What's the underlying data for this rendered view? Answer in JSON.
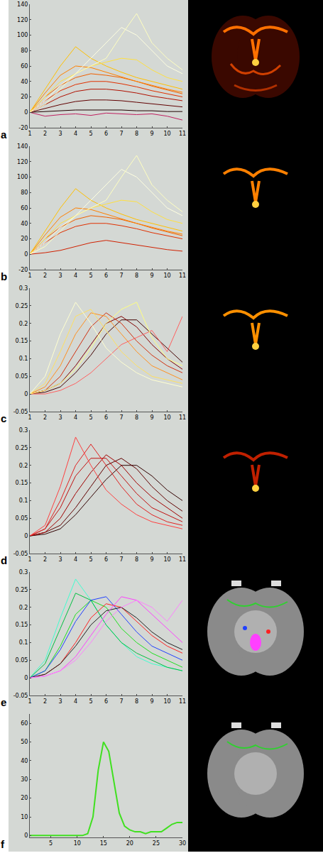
{
  "chart_data": [
    {
      "type": "line",
      "panel": "a",
      "x": [
        1,
        2,
        3,
        4,
        5,
        6,
        7,
        8,
        9,
        10,
        11
      ],
      "xlim": [
        1,
        11
      ],
      "xticks": [
        1,
        2,
        3,
        4,
        5,
        6,
        7,
        8,
        9,
        10,
        11
      ],
      "ylim": [
        -20,
        140
      ],
      "yticks": [
        -20,
        0,
        20,
        40,
        60,
        80,
        100,
        120,
        140
      ],
      "series": [
        {
          "color": "#c02060",
          "values": [
            0,
            -5,
            -3,
            -2,
            -4,
            -1,
            -2,
            -3,
            -2,
            -5,
            -10
          ]
        },
        {
          "color": "#200000",
          "values": [
            0,
            1,
            2,
            3,
            3,
            3,
            3,
            2,
            2,
            1,
            1
          ]
        },
        {
          "color": "#600000",
          "values": [
            0,
            5,
            10,
            14,
            16,
            16,
            15,
            13,
            11,
            9,
            7
          ]
        },
        {
          "color": "#b01000",
          "values": [
            0,
            10,
            20,
            27,
            30,
            30,
            28,
            25,
            21,
            18,
            15
          ]
        },
        {
          "color": "#e03000",
          "values": [
            0,
            15,
            28,
            36,
            40,
            40,
            37,
            33,
            28,
            24,
            20
          ]
        },
        {
          "color": "#f06000",
          "values": [
            0,
            20,
            35,
            45,
            50,
            48,
            45,
            40,
            34,
            29,
            24
          ]
        },
        {
          "color": "#ff8000",
          "values": [
            0,
            25,
            48,
            60,
            58,
            52,
            46,
            40,
            35,
            30,
            26
          ]
        },
        {
          "color": "#ffc000",
          "values": [
            0,
            30,
            60,
            85,
            70,
            60,
            52,
            45,
            40,
            35,
            30
          ]
        },
        {
          "color": "#ffe040",
          "values": [
            0,
            20,
            40,
            50,
            60,
            65,
            70,
            68,
            55,
            45,
            40
          ]
        },
        {
          "color": "#ffffe0",
          "values": [
            0,
            15,
            35,
            50,
            70,
            90,
            110,
            100,
            80,
            60,
            50
          ]
        },
        {
          "color": "#ffffc0",
          "values": [
            0,
            10,
            30,
            50,
            60,
            70,
            100,
            128,
            90,
            70,
            55
          ]
        }
      ]
    },
    {
      "type": "line",
      "panel": "b",
      "x": [
        1,
        2,
        3,
        4,
        5,
        6,
        7,
        8,
        9,
        10,
        11
      ],
      "xlim": [
        1,
        11
      ],
      "xticks": [
        1,
        2,
        3,
        4,
        5,
        6,
        7,
        8,
        9,
        10,
        11
      ],
      "ylim": [
        -20,
        140
      ],
      "yticks": [
        -20,
        0,
        20,
        40,
        60,
        80,
        100,
        120,
        140
      ],
      "series": [
        {
          "color": "#d02000",
          "values": [
            0,
            2,
            5,
            10,
            15,
            18,
            15,
            12,
            9,
            6,
            4
          ]
        },
        {
          "color": "#e03000",
          "values": [
            0,
            15,
            28,
            36,
            40,
            40,
            37,
            33,
            28,
            24,
            20
          ]
        },
        {
          "color": "#f06000",
          "values": [
            0,
            20,
            35,
            45,
            50,
            48,
            45,
            40,
            34,
            29,
            24
          ]
        },
        {
          "color": "#ff8000",
          "values": [
            0,
            25,
            48,
            60,
            58,
            52,
            46,
            40,
            35,
            30,
            26
          ]
        },
        {
          "color": "#ffc000",
          "values": [
            0,
            30,
            60,
            85,
            70,
            60,
            52,
            45,
            40,
            35,
            30
          ]
        },
        {
          "color": "#ffe040",
          "values": [
            0,
            20,
            40,
            50,
            60,
            65,
            70,
            68,
            55,
            45,
            40
          ]
        },
        {
          "color": "#ffffe0",
          "values": [
            0,
            15,
            35,
            50,
            70,
            90,
            110,
            100,
            80,
            60,
            50
          ]
        },
        {
          "color": "#ffffc0",
          "values": [
            0,
            10,
            30,
            50,
            60,
            70,
            100,
            128,
            90,
            70,
            55
          ]
        }
      ]
    },
    {
      "type": "line",
      "panel": "c",
      "x": [
        1,
        2,
        3,
        4,
        5,
        6,
        7,
        8,
        9,
        10,
        11
      ],
      "xlim": [
        1,
        11
      ],
      "xticks": [
        1,
        2,
        3,
        4,
        5,
        6,
        7,
        8,
        9,
        10,
        11
      ],
      "ylim": [
        -0.05,
        0.3
      ],
      "yticks": [
        -0.05,
        0,
        0.05,
        0.1,
        0.15,
        0.2,
        0.25,
        0.3
      ],
      "series": [
        {
          "color": "#400000",
          "values": [
            0,
            0.005,
            0.02,
            0.06,
            0.11,
            0.17,
            0.21,
            0.21,
            0.17,
            0.13,
            0.09
          ]
        },
        {
          "color": "#800000",
          "values": [
            0,
            0.01,
            0.03,
            0.08,
            0.14,
            0.2,
            0.22,
            0.19,
            0.14,
            0.1,
            0.07
          ]
        },
        {
          "color": "#d03010",
          "values": [
            0,
            0.01,
            0.05,
            0.12,
            0.19,
            0.23,
            0.2,
            0.15,
            0.11,
            0.08,
            0.06
          ]
        },
        {
          "color": "#ff9020",
          "values": [
            0,
            0.02,
            0.08,
            0.17,
            0.23,
            0.22,
            0.17,
            0.12,
            0.08,
            0.06,
            0.04
          ]
        },
        {
          "color": "#ff6060",
          "values": [
            0,
            0,
            0.01,
            0.03,
            0.06,
            0.1,
            0.14,
            0.16,
            0.18,
            0.12,
            0.22
          ]
        },
        {
          "color": "#ffe060",
          "values": [
            0,
            0.03,
            0.12,
            0.22,
            0.24,
            0.18,
            0.12,
            0.08,
            0.05,
            0.04,
            0.03
          ]
        },
        {
          "color": "#ffff80",
          "values": [
            0,
            0.01,
            0.03,
            0.07,
            0.13,
            0.2,
            0.24,
            0.26,
            0.16,
            0.1,
            0.08
          ]
        },
        {
          "color": "#ffffd0",
          "values": [
            0,
            0.05,
            0.17,
            0.26,
            0.2,
            0.13,
            0.09,
            0.06,
            0.04,
            0.03,
            0.02
          ]
        }
      ]
    },
    {
      "type": "line",
      "panel": "d",
      "x": [
        1,
        2,
        3,
        4,
        5,
        6,
        7,
        8,
        9,
        10,
        11
      ],
      "xlim": [
        1,
        11
      ],
      "xticks": [
        1,
        2,
        3,
        4,
        5,
        6,
        7,
        8,
        9,
        10,
        11
      ],
      "ylim": [
        -0.05,
        0.3
      ],
      "yticks": [
        -0.05,
        0,
        0.05,
        0.1,
        0.15,
        0.2,
        0.25,
        0.3
      ],
      "series": [
        {
          "color": "#300000",
          "values": [
            0,
            0.005,
            0.02,
            0.06,
            0.11,
            0.16,
            0.2,
            0.2,
            0.17,
            0.13,
            0.1
          ]
        },
        {
          "color": "#600000",
          "values": [
            0,
            0.01,
            0.03,
            0.08,
            0.14,
            0.2,
            0.22,
            0.19,
            0.14,
            0.1,
            0.07
          ]
        },
        {
          "color": "#a00000",
          "values": [
            0,
            0.01,
            0.05,
            0.12,
            0.18,
            0.23,
            0.2,
            0.15,
            0.11,
            0.08,
            0.05
          ]
        },
        {
          "color": "#c01010",
          "values": [
            0,
            0.02,
            0.08,
            0.17,
            0.22,
            0.22,
            0.17,
            0.12,
            0.08,
            0.06,
            0.04
          ]
        },
        {
          "color": "#e02020",
          "values": [
            0,
            0.02,
            0.1,
            0.2,
            0.26,
            0.2,
            0.14,
            0.09,
            0.06,
            0.04,
            0.03
          ]
        },
        {
          "color": "#ff4040",
          "values": [
            0,
            0.03,
            0.14,
            0.28,
            0.2,
            0.13,
            0.09,
            0.06,
            0.04,
            0.03,
            0.02
          ]
        }
      ]
    },
    {
      "type": "line",
      "panel": "e",
      "x": [
        1,
        2,
        3,
        4,
        5,
        6,
        7,
        8,
        9,
        10,
        11
      ],
      "xlim": [
        1,
        11
      ],
      "xticks": [
        1,
        2,
        3,
        4,
        5,
        6,
        7,
        8,
        9,
        10,
        11
      ],
      "ylim": [
        -0.05,
        0.3
      ],
      "yticks": [
        -0.05,
        0,
        0.05,
        0.1,
        0.15,
        0.2,
        0.25,
        0.3
      ],
      "series": [
        {
          "color": "#40ffd0",
          "values": [
            0,
            0.05,
            0.17,
            0.28,
            0.22,
            0.15,
            0.1,
            0.06,
            0.04,
            0.03,
            0.02
          ]
        },
        {
          "color": "#00c040",
          "values": [
            0,
            0.04,
            0.14,
            0.24,
            0.22,
            0.15,
            0.1,
            0.07,
            0.05,
            0.03,
            0.02
          ]
        },
        {
          "color": "#20e020",
          "values": [
            0,
            0.02,
            0.09,
            0.18,
            0.22,
            0.2,
            0.14,
            0.1,
            0.07,
            0.05,
            0.03
          ]
        },
        {
          "color": "#2040ff",
          "values": [
            0,
            0.02,
            0.08,
            0.16,
            0.22,
            0.23,
            0.18,
            0.13,
            0.09,
            0.07,
            0.05
          ]
        },
        {
          "color": "#ff2020",
          "values": [
            0,
            0.01,
            0.04,
            0.1,
            0.17,
            0.21,
            0.2,
            0.16,
            0.12,
            0.09,
            0.07
          ]
        },
        {
          "color": "#202020",
          "values": [
            0,
            0.01,
            0.04,
            0.09,
            0.15,
            0.19,
            0.2,
            0.17,
            0.13,
            0.1,
            0.08
          ]
        },
        {
          "color": "#ff40ff",
          "values": [
            0,
            0.005,
            0.02,
            0.06,
            0.12,
            0.18,
            0.23,
            0.22,
            0.18,
            0.14,
            0.1
          ]
        },
        {
          "color": "#ff80ff",
          "values": [
            0,
            0.005,
            0.02,
            0.05,
            0.1,
            0.16,
            0.2,
            0.22,
            0.2,
            0.16,
            0.22
          ]
        }
      ]
    },
    {
      "type": "line",
      "panel": "f",
      "x": [
        1,
        2,
        3,
        4,
        5,
        6,
        7,
        8,
        9,
        10,
        11,
        12,
        13,
        14,
        15,
        16,
        17,
        18,
        19,
        20,
        21,
        22,
        23,
        24,
        25,
        26,
        27,
        28,
        29,
        30
      ],
      "xlim": [
        1,
        30
      ],
      "xticks": [
        5,
        10,
        15,
        20,
        25,
        30
      ],
      "ylim": [
        -1,
        65
      ],
      "yticks": [
        0,
        10,
        20,
        30,
        40,
        50,
        60
      ],
      "series": [
        {
          "color": "#40e020",
          "values": [
            0,
            0,
            0,
            0,
            0,
            0,
            0,
            0,
            0,
            0,
            0,
            1,
            10,
            35,
            50,
            45,
            28,
            12,
            5,
            3,
            2,
            2,
            1,
            2,
            2,
            2,
            4,
            6,
            7,
            7
          ]
        }
      ]
    }
  ]
}
